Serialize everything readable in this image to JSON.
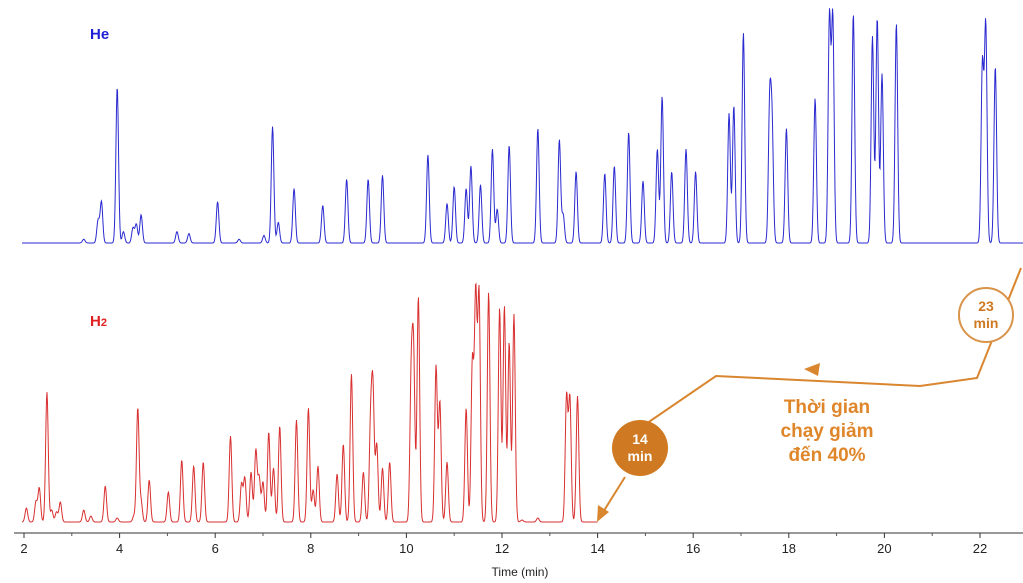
{
  "chart_data": {
    "type": "line",
    "xlabel": "Time (min)",
    "xlim": [
      2,
      23.0
    ],
    "ticks": [
      2,
      4,
      6,
      8,
      10,
      12,
      14,
      16,
      18,
      20,
      22
    ],
    "grid": false,
    "series": [
      {
        "name": "He",
        "color": "#2a2ad0",
        "run_end": 23.0,
        "peaks": [
          [
            3.25,
            0.02
          ],
          [
            3.55,
            0.12
          ],
          [
            3.62,
            0.22
          ],
          [
            3.95,
            0.83
          ],
          [
            4.08,
            0.06
          ],
          [
            4.28,
            0.08
          ],
          [
            4.35,
            0.1
          ],
          [
            4.45,
            0.15
          ],
          [
            5.2,
            0.06
          ],
          [
            5.45,
            0.05
          ],
          [
            6.05,
            0.22
          ],
          [
            6.5,
            0.02
          ],
          [
            7.02,
            0.04
          ],
          [
            7.2,
            0.62
          ],
          [
            7.32,
            0.11
          ],
          [
            7.65,
            0.29
          ],
          [
            8.25,
            0.2
          ],
          [
            8.75,
            0.34
          ],
          [
            9.2,
            0.34
          ],
          [
            9.5,
            0.36
          ],
          [
            10.45,
            0.47
          ],
          [
            10.85,
            0.21
          ],
          [
            11.0,
            0.3
          ],
          [
            11.25,
            0.29
          ],
          [
            11.35,
            0.41
          ],
          [
            11.55,
            0.31
          ],
          [
            11.8,
            0.5
          ],
          [
            11.9,
            0.18
          ],
          [
            12.15,
            0.52
          ],
          [
            12.75,
            0.61
          ],
          [
            13.2,
            0.55
          ],
          [
            13.28,
            0.15
          ],
          [
            13.55,
            0.38
          ],
          [
            14.15,
            0.37
          ],
          [
            14.35,
            0.41
          ],
          [
            14.65,
            0.59
          ],
          [
            14.95,
            0.33
          ],
          [
            15.25,
            0.5
          ],
          [
            15.35,
            0.78
          ],
          [
            15.55,
            0.38
          ],
          [
            15.85,
            0.5
          ],
          [
            16.05,
            0.38
          ],
          [
            16.75,
            0.69
          ],
          [
            16.85,
            0.73
          ],
          [
            17.05,
            1.12
          ],
          [
            17.6,
            0.72
          ],
          [
            17.65,
            0.6
          ],
          [
            17.95,
            0.61
          ],
          [
            18.55,
            0.77
          ],
          [
            18.85,
            1.2
          ],
          [
            18.92,
            1.2
          ],
          [
            19.35,
            1.22
          ],
          [
            19.75,
            1.1
          ],
          [
            19.85,
            1.2
          ],
          [
            19.95,
            0.9
          ],
          [
            20.25,
            1.17
          ],
          [
            22.05,
            0.95
          ],
          [
            22.12,
            1.16
          ],
          [
            22.32,
            0.94
          ]
        ]
      },
      {
        "name": "H2",
        "color": "#d93030",
        "run_end": 14.0,
        "peaks": [
          [
            2.05,
            0.07
          ],
          [
            2.25,
            0.1
          ],
          [
            2.32,
            0.17
          ],
          [
            2.48,
            0.65
          ],
          [
            2.58,
            0.06
          ],
          [
            2.68,
            0.05
          ],
          [
            2.76,
            0.1
          ],
          [
            3.25,
            0.06
          ],
          [
            3.4,
            0.03
          ],
          [
            3.7,
            0.18
          ],
          [
            3.95,
            0.02
          ],
          [
            4.3,
            0.03
          ],
          [
            4.38,
            0.57
          ],
          [
            4.45,
            0.1
          ],
          [
            4.62,
            0.21
          ],
          [
            5.02,
            0.15
          ],
          [
            5.3,
            0.31
          ],
          [
            5.55,
            0.28
          ],
          [
            5.75,
            0.3
          ],
          [
            6.32,
            0.43
          ],
          [
            6.55,
            0.19
          ],
          [
            6.62,
            0.22
          ],
          [
            6.75,
            0.25
          ],
          [
            6.85,
            0.36
          ],
          [
            6.92,
            0.22
          ],
          [
            7.0,
            0.2
          ],
          [
            7.12,
            0.45
          ],
          [
            7.22,
            0.27
          ],
          [
            7.35,
            0.48
          ],
          [
            7.7,
            0.51
          ],
          [
            7.95,
            0.57
          ],
          [
            8.05,
            0.16
          ],
          [
            8.15,
            0.28
          ],
          [
            8.55,
            0.24
          ],
          [
            8.68,
            0.39
          ],
          [
            8.85,
            0.74
          ],
          [
            9.1,
            0.25
          ],
          [
            9.25,
            0.47
          ],
          [
            9.3,
            0.64
          ],
          [
            9.38,
            0.39
          ],
          [
            9.5,
            0.27
          ],
          [
            9.65,
            0.3
          ],
          [
            10.1,
            0.69
          ],
          [
            10.15,
            0.81
          ],
          [
            10.25,
            1.13
          ],
          [
            10.62,
            0.78
          ],
          [
            10.7,
            0.6
          ],
          [
            10.85,
            0.3
          ],
          [
            11.25,
            0.57
          ],
          [
            11.38,
            0.8
          ],
          [
            11.45,
            1.13
          ],
          [
            11.52,
            1.14
          ],
          [
            11.72,
            1.15
          ],
          [
            11.95,
            1.07
          ],
          [
            12.05,
            1.08
          ],
          [
            12.15,
            0.9
          ],
          [
            12.25,
            1.04
          ],
          [
            12.42,
            0.01
          ],
          [
            12.75,
            0.02
          ],
          [
            13.35,
            0.63
          ],
          [
            13.42,
            0.62
          ],
          [
            13.58,
            0.63
          ]
        ]
      }
    ]
  },
  "labels": {
    "he": "He",
    "h2_main": "H",
    "h2_sub": "2",
    "annotation_line1": "Thời gian",
    "annotation_line2": "chạy giảm",
    "annotation_line3": "đến 40%",
    "badge_new_value": "14",
    "badge_new_unit": "min",
    "badge_old_value": "23",
    "badge_old_unit": "min"
  },
  "colors": {
    "annotation": "#e0862a",
    "badge_fill": "#cf7a22",
    "arrow": "#d9862f"
  }
}
